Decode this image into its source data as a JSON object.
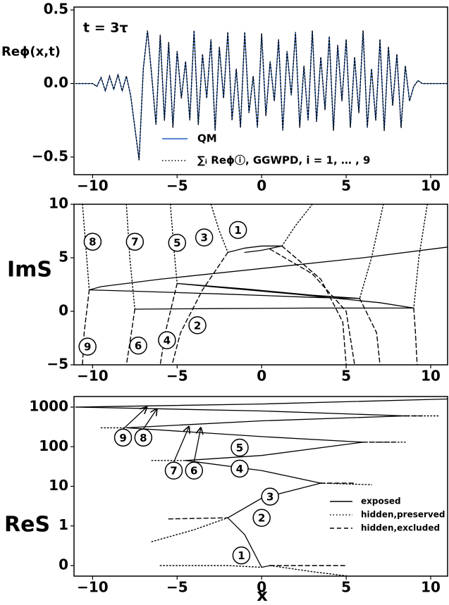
{
  "chart_data": [
    {
      "type": "line",
      "annotation": "t = 3τ",
      "ylabel": "Reϕ(x,t)",
      "xlim": [
        -11.1,
        11
      ],
      "ylim": [
        -0.62,
        0.52
      ],
      "xticks": [
        {
          "value": -10,
          "label": "−10"
        },
        {
          "value": -5,
          "label": "−5"
        },
        0,
        5,
        10
      ],
      "yticks": [
        {
          "value": -0.5,
          "label": "−0.5"
        },
        {
          "value": 0,
          "label": "0.0"
        },
        0.5
      ],
      "x": [
        -11,
        -10.75,
        -10.5,
        -10.25,
        -10,
        -9.75,
        -9.5,
        -9.25,
        -9,
        -8.75,
        -8.5,
        -8.25,
        -8,
        -7.75,
        -7.5,
        -7.25,
        -7,
        -6.75,
        -6.5,
        -6.25,
        -6,
        -5.75,
        -5.5,
        -5.25,
        -5,
        -4.75,
        -4.5,
        -4.25,
        -4,
        -3.75,
        -3.5,
        -3.25,
        -3,
        -2.75,
        -2.5,
        -2.25,
        -2,
        -1.75,
        -1.5,
        -1.25,
        -1,
        -0.75,
        -0.5,
        -0.25,
        0,
        0.25,
        0.5,
        0.75,
        1,
        1.25,
        1.5,
        1.75,
        2,
        2.25,
        2.5,
        2.75,
        3,
        3.25,
        3.5,
        3.75,
        4,
        4.25,
        4.5,
        4.75,
        5,
        5.25,
        5.5,
        5.75,
        6,
        6.25,
        6.5,
        6.75,
        7,
        7.25,
        7.5,
        7.75,
        8,
        8.25,
        8.5,
        8.75,
        9,
        9.25,
        9.5,
        9.75,
        10,
        10.25,
        10.5,
        10.75,
        11
      ],
      "series": [
        {
          "name": "QM",
          "color": "#1f5fbf",
          "style": "solid",
          "values": [
            0,
            0,
            0,
            0,
            0,
            -0.02,
            0.04,
            -0.05,
            0.05,
            -0.04,
            0.06,
            -0.05,
            0.05,
            -0.08,
            -0.3,
            -0.52,
            0.1,
            0.36,
            0.05,
            -0.28,
            0.33,
            -0.25,
            0.28,
            -0.3,
            0.22,
            -0.1,
            0.15,
            -0.25,
            0.36,
            -0.28,
            0.2,
            -0.1,
            0.3,
            -0.32,
            0.25,
            -0.1,
            0.35,
            -0.25,
            0.1,
            -0.3,
            0.35,
            -0.2,
            0.05,
            -0.3,
            0.34,
            -0.22,
            0.15,
            -0.12,
            0.3,
            -0.32,
            0.22,
            -0.08,
            0.35,
            -0.3,
            0.12,
            -0.25,
            0.36,
            -0.26,
            0.18,
            -0.18,
            0.32,
            -0.32,
            0.26,
            -0.12,
            0.3,
            -0.3,
            0.18,
            -0.2,
            0.36,
            -0.3,
            0.1,
            -0.25,
            0.3,
            -0.32,
            0.25,
            -0.15,
            0.2,
            -0.3,
            0.12,
            -0.12,
            -0.02,
            0.02,
            0,
            0,
            0,
            0,
            0,
            0,
            0
          ]
        },
        {
          "name": "∑ᵢ Reϕⓘ, GGWPD, i = 1, … , 9",
          "color": "#000000",
          "style": "dotted",
          "values": [
            0,
            0,
            0,
            0,
            0,
            -0.02,
            0.04,
            -0.05,
            0.05,
            -0.04,
            0.06,
            -0.05,
            0.05,
            -0.08,
            -0.3,
            -0.52,
            0.1,
            0.36,
            0.05,
            -0.28,
            0.33,
            -0.25,
            0.28,
            -0.3,
            0.22,
            -0.1,
            0.15,
            -0.25,
            0.36,
            -0.28,
            0.2,
            -0.1,
            0.3,
            -0.32,
            0.25,
            -0.1,
            0.35,
            -0.25,
            0.1,
            -0.3,
            0.35,
            -0.2,
            0.05,
            -0.3,
            0.34,
            -0.22,
            0.15,
            -0.12,
            0.3,
            -0.32,
            0.22,
            -0.08,
            0.35,
            -0.3,
            0.12,
            -0.25,
            0.36,
            -0.26,
            0.18,
            -0.18,
            0.32,
            -0.32,
            0.26,
            -0.12,
            0.3,
            -0.3,
            0.18,
            -0.2,
            0.36,
            -0.3,
            0.1,
            -0.25,
            0.3,
            -0.32,
            0.25,
            -0.15,
            0.2,
            -0.3,
            0.12,
            -0.12,
            -0.02,
            0.02,
            0,
            0,
            0,
            0,
            0,
            0,
            0
          ]
        }
      ]
    },
    {
      "type": "line",
      "ylabel": "ImS",
      "color": "#000000",
      "xlim": [
        -11.1,
        11
      ],
      "ylim": [
        -5,
        10
      ],
      "xticks": [
        {
          "value": -10,
          "label": "−10"
        },
        {
          "value": -5,
          "label": "−5"
        },
        0,
        5,
        10
      ],
      "yticks": [
        {
          "value": -5,
          "label": "−5"
        },
        0,
        5,
        10
      ],
      "labels": [
        "8",
        "7",
        "5",
        "3",
        "1",
        "9",
        "6",
        "4",
        "2"
      ],
      "series": [
        {
          "style": "solid",
          "x": [
            11,
            6,
            0,
            -6,
            -9.5,
            -10.2,
            -8,
            -2,
            3,
            5.8,
            3,
            -1,
            -5,
            -3,
            2,
            7,
            9,
            3,
            -3,
            -7.5
          ],
          "values": [
            6,
            5,
            4,
            3,
            2.3,
            2,
            1.9,
            1.6,
            1.3,
            1.2,
            1.5,
            2.1,
            2.6,
            2.3,
            1.6,
            0.8,
            0.3,
            0.3,
            0.25,
            0.2
          ]
        },
        {
          "style": "solid",
          "x": [
            -2,
            -1,
            0,
            1.2,
            0,
            -1
          ],
          "values": [
            5.5,
            5.9,
            6.1,
            6.1,
            5.7,
            5.5
          ]
        },
        {
          "style": "dotted",
          "x": [
            -10.6,
            -10.4,
            -10.2
          ],
          "values": [
            10,
            6,
            2
          ]
        },
        {
          "style": "dotted",
          "x": [
            -8,
            -7.8,
            -7.5
          ],
          "values": [
            10,
            5,
            0.2
          ]
        },
        {
          "style": "dotted",
          "x": [
            -5.4,
            -5.2,
            -5
          ],
          "values": [
            10,
            6,
            2.6
          ]
        },
        {
          "style": "dotted",
          "x": [
            -3,
            -2.5,
            -2
          ],
          "values": [
            10,
            7.5,
            5.5
          ]
        },
        {
          "style": "dotted",
          "x": [
            3,
            2,
            1.2
          ],
          "values": [
            10,
            8,
            6.1
          ]
        },
        {
          "style": "dotted",
          "x": [
            7.2,
            6.5,
            5.8
          ],
          "values": [
            10,
            5,
            1.2
          ]
        },
        {
          "style": "dotted",
          "x": [
            9.8,
            9.3,
            9
          ],
          "values": [
            10,
            5,
            0.3
          ]
        },
        {
          "style": "dashed",
          "x": [
            -10.2,
            -10.5,
            -10.6
          ],
          "values": [
            2,
            -2,
            -5
          ]
        },
        {
          "style": "dashed",
          "x": [
            -7.5,
            -7.8,
            -8
          ],
          "values": [
            0.2,
            -3,
            -5
          ]
        },
        {
          "style": "dashed",
          "x": [
            -5,
            -5.7,
            -6
          ],
          "values": [
            2.6,
            -2,
            -5
          ]
        },
        {
          "style": "dashed",
          "x": [
            -2,
            -3.5,
            -4.8,
            -5.3
          ],
          "values": [
            5.5,
            2,
            -2,
            -5
          ]
        },
        {
          "style": "dashed",
          "x": [
            1.2,
            3.5,
            4.8,
            5
          ],
          "values": [
            6.1,
            3,
            -1,
            -5
          ]
        },
        {
          "style": "dashed",
          "x": [
            0.5,
            3,
            5,
            5.5
          ],
          "values": [
            5.8,
            3.5,
            0,
            -5
          ]
        },
        {
          "style": "dashed",
          "x": [
            5.8,
            6.8,
            7
          ],
          "values": [
            1.2,
            -2,
            -5
          ]
        },
        {
          "style": "dashed",
          "x": [
            9,
            9.1,
            9.2
          ],
          "values": [
            0.3,
            -2,
            -5
          ]
        }
      ]
    },
    {
      "type": "line",
      "ylabel": "ReS",
      "xlabel": "x",
      "log": true,
      "color": "#000000",
      "xlim": [
        -11.1,
        11
      ],
      "ylim": [
        0.054,
        1850
      ],
      "xticks": [
        {
          "value": -10,
          "label": "−10"
        },
        {
          "value": -5,
          "label": "−5"
        },
        0,
        5,
        10
      ],
      "yticks": [
        {
          "value": 0.1,
          "label": "0"
        },
        1,
        10,
        100,
        1000
      ],
      "labels": [
        "9",
        "8",
        "7",
        "6",
        "5",
        "4",
        "3",
        "2",
        "1"
      ],
      "legend": [
        {
          "label": "exposed",
          "style": "solid"
        },
        {
          "label": "hidden,preserved",
          "style": "dotted"
        },
        {
          "label": "hidden,excluded",
          "style": "dashed"
        }
      ],
      "series": [
        {
          "style": "solid",
          "x": [
            -11,
            0,
            11
          ],
          "values": [
            1000,
            1200,
            1600
          ]
        },
        {
          "style": "solid",
          "x": [
            -11,
            0,
            8.5
          ],
          "values": [
            1000,
            800,
            600
          ]
        },
        {
          "style": "solid",
          "x": [
            -8,
            0,
            8.5
          ],
          "values": [
            300,
            450,
            600
          ]
        },
        {
          "style": "solid",
          "x": [
            -8,
            0,
            6
          ],
          "values": [
            300,
            180,
            130
          ]
        },
        {
          "style": "solid",
          "x": [
            -4.5,
            0,
            6
          ],
          "values": [
            45,
            60,
            130
          ]
        },
        {
          "style": "solid",
          "x": [
            -4.5,
            0,
            3.5
          ],
          "values": [
            45,
            25,
            12
          ]
        },
        {
          "style": "solid",
          "x": [
            -2,
            0,
            3.5
          ],
          "values": [
            1.6,
            5,
            12
          ]
        },
        {
          "style": "solid",
          "x": [
            -2,
            -1,
            0,
            0.5
          ],
          "values": [
            1.6,
            0.6,
            0.09,
            0.1
          ]
        },
        {
          "style": "dotted",
          "x": [
            -6.5,
            -4,
            -2
          ],
          "values": [
            0.4,
            0.8,
            1.6
          ]
        },
        {
          "style": "dotted",
          "x": [
            -6,
            -2,
            0
          ],
          "values": [
            0.1,
            0.1,
            0.09
          ]
        },
        {
          "style": "dotted",
          "x": [
            0.5,
            3,
            5
          ],
          "values": [
            0.1,
            0.07,
            0.055
          ]
        },
        {
          "style": "dotted",
          "x": [
            -9.5,
            -8
          ],
          "values": [
            300,
            300
          ]
        },
        {
          "style": "dotted",
          "x": [
            -6.5,
            -4.5
          ],
          "values": [
            45,
            45
          ]
        },
        {
          "style": "dotted",
          "x": [
            6,
            8.5
          ],
          "values": [
            130,
            130
          ]
        },
        {
          "style": "dotted",
          "x": [
            8.5,
            10.5
          ],
          "values": [
            600,
            600
          ]
        },
        {
          "style": "dotted",
          "x": [
            3.5,
            6.5
          ],
          "values": [
            12,
            11
          ]
        },
        {
          "style": "dashed",
          "x": [
            -5.5,
            -2
          ],
          "values": [
            1.5,
            1.6
          ]
        },
        {
          "style": "dashed",
          "x": [
            0.5,
            5
          ],
          "values": [
            0.1,
            0.1
          ]
        },
        {
          "style": "dashed",
          "x": [
            3.5,
            5.5
          ],
          "values": [
            12,
            12
          ]
        },
        {
          "style": "dashed",
          "x": [
            8.5,
            9.5
          ],
          "values": [
            600,
            600
          ]
        },
        {
          "style": "dashed",
          "x": [
            6,
            8
          ],
          "values": [
            130,
            130
          ]
        }
      ]
    }
  ]
}
